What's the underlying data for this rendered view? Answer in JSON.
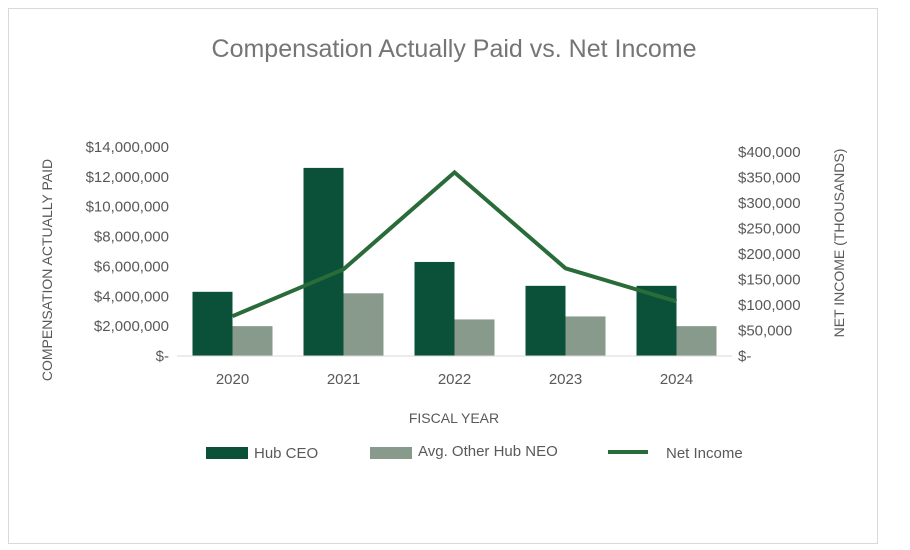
{
  "chart_data": {
    "type": "bar",
    "title": "Compensation  Actually  Paid  vs. Net Income",
    "xlabel": "FISCAL YEAR",
    "ylabel": "COMPENSATION ACTUALLY PAID",
    "y2label": "NET INCOME (THOUSANDS)",
    "categories": [
      "2020",
      "2021",
      "2022",
      "2023",
      "2024"
    ],
    "ylim": [
      0,
      14000000
    ],
    "y2lim": [
      0,
      400000
    ],
    "yticks": [
      "$-",
      "$2,000,000",
      "$4,000,000",
      "$6,000,000",
      "$8,000,000",
      "$10,000,000",
      "$12,000,000",
      "$14,000,000"
    ],
    "y2ticks": [
      "$-",
      "$50,000",
      "$100,000",
      "$150,000",
      "$200,000",
      "$250,000",
      "$300,000",
      "$350,000",
      "$400,000"
    ],
    "series": [
      {
        "name": "Hub CEO",
        "type": "bar",
        "axis": "left",
        "color": "#0b5038",
        "values": [
          4300000,
          12600000,
          6300000,
          4700000,
          4700000
        ]
      },
      {
        "name": "Avg. Other Hub NEO",
        "type": "bar",
        "axis": "left",
        "color": "#879a8b",
        "values": [
          2000000,
          4200000,
          2450000,
          2650000,
          2000000
        ]
      },
      {
        "name": "Net Income",
        "type": "line",
        "axis": "right",
        "color": "#2a6b3a",
        "values": [
          78000,
          170000,
          360000,
          172000,
          107000
        ]
      }
    ],
    "legend_position": "bottom",
    "grid": false
  }
}
